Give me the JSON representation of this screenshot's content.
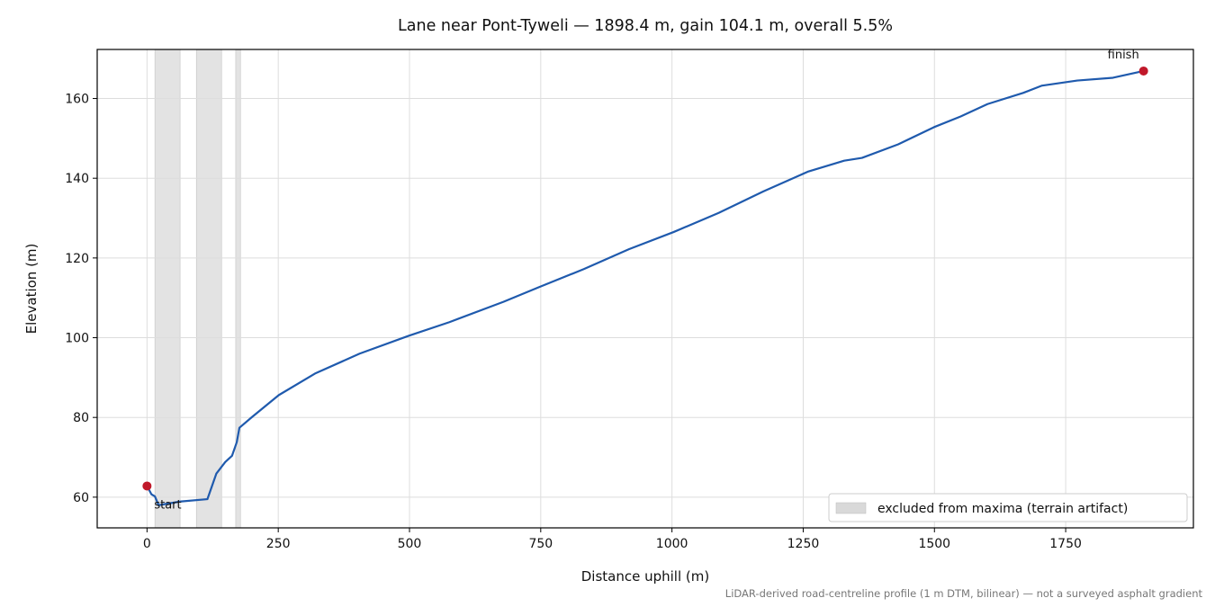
{
  "chart_data": {
    "type": "line",
    "title": "Lane near Pont-Tyweli — 1898.4 m, gain 104.1 m, overall 5.5%",
    "x_label": "Distance uphill (m)",
    "y_label": "Elevation (m)",
    "footnote": "LiDAR-derived road-centreline profile (1 m DTM, bilinear) — not a surveyed asphalt gradient",
    "xlim": [
      -94.9,
      1993.3
    ],
    "ylim": [
      52.3,
      172.3
    ],
    "xticks": [
      0,
      250,
      500,
      750,
      1000,
      1250,
      1500,
      1750
    ],
    "yticks": [
      60,
      80,
      100,
      120,
      140,
      160
    ],
    "grid": true,
    "legend_position": "lower right",
    "series": [
      {
        "color": "#1f5aad",
        "x": [
          0,
          8.5,
          15,
          22,
          63,
          115,
          132,
          149,
          162,
          171,
          176,
          200,
          251,
          320,
          405,
          499,
          576,
          679,
          747,
          832,
          918,
          1003,
          1089,
          1174,
          1260,
          1328,
          1362,
          1431,
          1499,
          1550,
          1601,
          1669,
          1704,
          1772,
          1840,
          1898.4
        ],
        "values": [
          62.8,
          60.7,
          60.2,
          58,
          58.9,
          59.5,
          65.9,
          68.8,
          70.4,
          73.8,
          77.4,
          80.1,
          85.6,
          91,
          96,
          100.5,
          103.9,
          109,
          112.7,
          117.2,
          122.2,
          126.5,
          131.3,
          136.7,
          141.7,
          144.4,
          145.1,
          148.5,
          152.8,
          155.5,
          158.6,
          161.4,
          163.2,
          164.5,
          165.2,
          166.9
        ]
      }
    ],
    "endpoints": {
      "color": "#c0182a",
      "labels": [
        "start",
        "finish"
      ],
      "x": [
        0,
        1898.4
      ],
      "values": [
        62.8,
        166.9
      ]
    },
    "excluded": {
      "name": "excluded from maxima (terrain artifact)",
      "color": "#d9d9d9",
      "spans": [
        [
          15,
          63
        ],
        [
          94,
          142
        ],
        [
          169,
          178
        ]
      ]
    }
  }
}
